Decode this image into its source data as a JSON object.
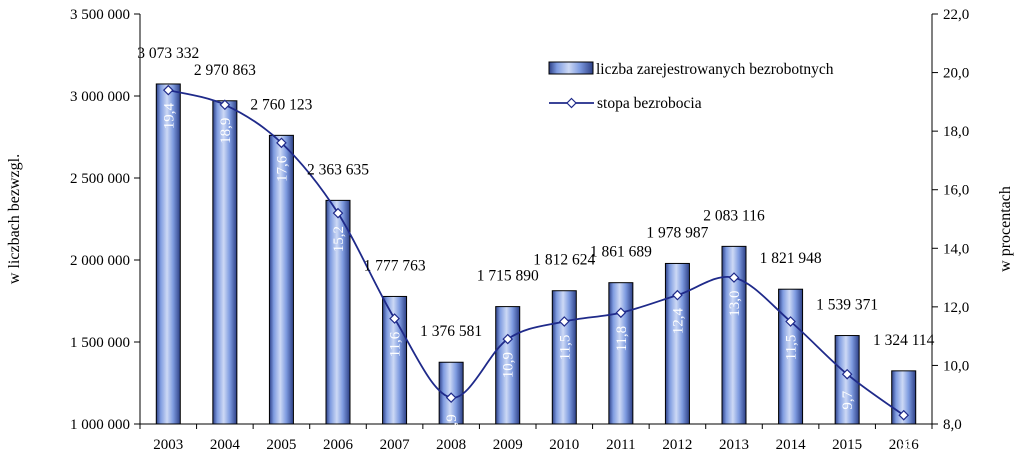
{
  "chart_data": {
    "type": "bar+line",
    "categories": [
      "2003",
      "2004",
      "2005",
      "2006",
      "2007",
      "2008",
      "2009",
      "2010",
      "2011",
      "2012",
      "2013",
      "2014",
      "2015",
      "2016"
    ],
    "series": [
      {
        "name": "liczba zarejestrowanych bezrobotnych",
        "type": "bar",
        "axis": "left",
        "values": [
          3073332,
          2970863,
          2760123,
          2363635,
          1777763,
          1376581,
          1715890,
          1812624,
          1861689,
          1978987,
          2083116,
          1821948,
          1539371,
          1324114
        ],
        "labels": [
          "3 073 332",
          "2 970 863",
          "2 760 123",
          "2 363 635",
          "1 777 763",
          "1 376 581",
          "1 715 890",
          "1 812 624",
          "1 861 689",
          "1 978 987",
          "2 083 116",
          "1 821 948",
          "1 539 371",
          "1 324 114"
        ]
      },
      {
        "name": "stopa bezrobocia",
        "type": "line",
        "axis": "right",
        "values": [
          19.4,
          18.9,
          17.6,
          15.2,
          11.6,
          8.9,
          10.9,
          11.5,
          11.8,
          12.4,
          13.0,
          11.5,
          9.7,
          8.3
        ],
        "labels": [
          "19,4",
          "18,9",
          "17,6",
          "15,2",
          "11,6",
          "8,9",
          "10,9",
          "11,5",
          "11,8",
          "12,4",
          "13,0",
          "11,5",
          "9,7",
          "8,3"
        ]
      }
    ],
    "ylabel_left": "w liczbach bezwzgl.",
    "ylabel_right": "w procentach",
    "ylim_left": [
      1000000,
      3500000
    ],
    "ylim_right": [
      8.0,
      22.0
    ],
    "yticks_left": [
      "1 000 000",
      "1 500 000",
      "2 000 000",
      "2 500 000",
      "3 000 000",
      "3 500 000"
    ],
    "yticks_right": [
      "8,0",
      "10,0",
      "12,0",
      "14,0",
      "16,0",
      "18,0",
      "20,0",
      "22,0"
    ],
    "legend_position": "top-right",
    "grid": false,
    "colors": {
      "bar_light": "#cdd9f5",
      "bar_mid": "#7e9be0",
      "bar_dark": "#2c3f86",
      "line": "#1f2a8a",
      "marker_fill": "#ffffff"
    }
  }
}
